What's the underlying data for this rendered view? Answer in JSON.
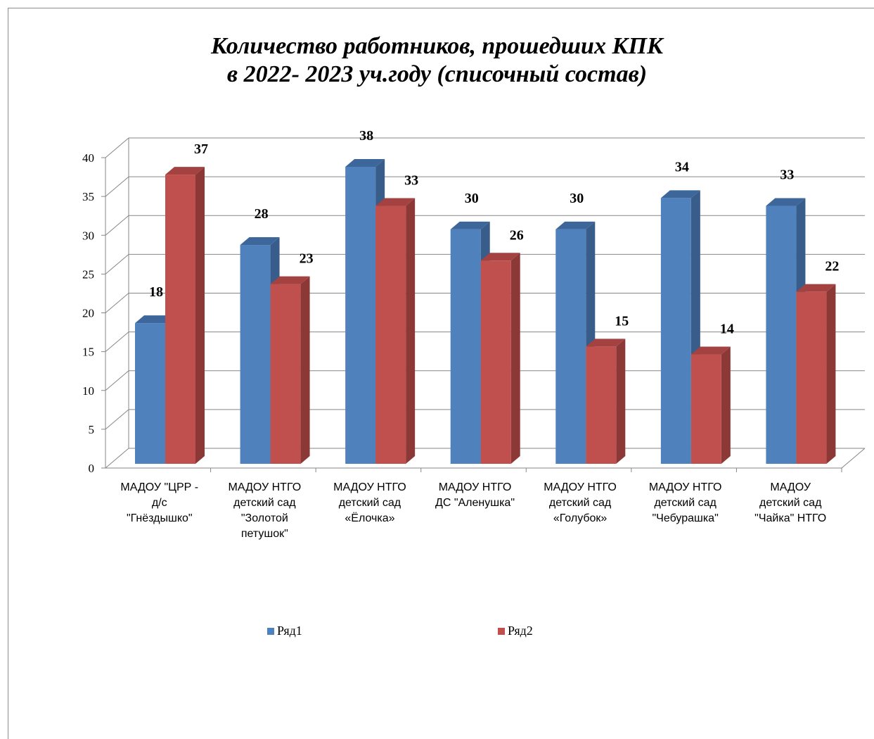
{
  "chart_data": {
    "type": "bar",
    "title_lines": [
      "Количество работников, прошедших КПК",
      "в 2022- 2023 уч.году (списочный состав)"
    ],
    "categories": [
      [
        "МАДОУ \"ЦРР -",
        "д/с",
        "\"Гнёздышко\""
      ],
      [
        "МАДОУ НТГО",
        "детский сад",
        "\"Золотой",
        "петушок\""
      ],
      [
        "МАДОУ НТГО",
        "детский сад",
        "«Ёлочка»"
      ],
      [
        "МАДОУ НТГО",
        "ДС \"Аленушка\""
      ],
      [
        "МАДОУ НТГО",
        "детский сад",
        "«Голубок»"
      ],
      [
        "МАДОУ НТГО",
        "детский сад",
        "\"Чебурашка\""
      ],
      [
        "МАДОУ",
        "детский сад",
        "\"Чайка\" НТГО"
      ]
    ],
    "series": [
      {
        "name": "Ряд1",
        "values": [
          18,
          28,
          38,
          30,
          30,
          34,
          33
        ],
        "color": "#4f81bd",
        "side_color": "#385d8a",
        "top_color": "#3d679a"
      },
      {
        "name": "Ряд2",
        "values": [
          37,
          23,
          33,
          26,
          15,
          14,
          22
        ],
        "color": "#c0504d",
        "side_color": "#8c3836",
        "top_color": "#a34240"
      }
    ],
    "ylim": [
      0,
      40
    ],
    "yticks": [
      0,
      5,
      10,
      15,
      20,
      25,
      30,
      35,
      40
    ],
    "grid": true,
    "legend_position": "bottom",
    "style": "3d-clustered-column"
  }
}
